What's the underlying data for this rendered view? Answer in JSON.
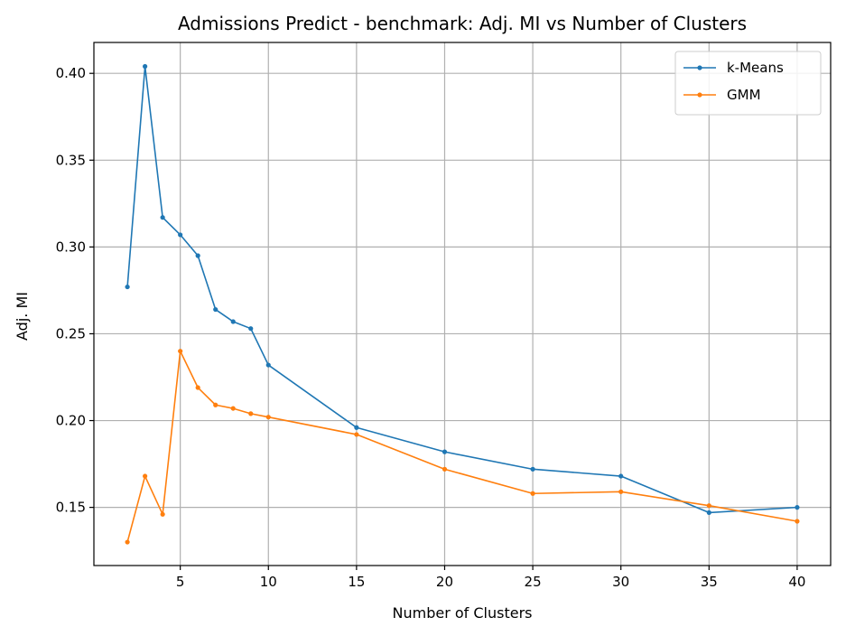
{
  "chart_data": {
    "type": "line",
    "title": "Admissions Predict - benchmark: Adj. MI vs Number of Clusters",
    "xlabel": "Number of Clusters",
    "ylabel": "Adj. MI",
    "xlim": [
      0.1,
      41.9
    ],
    "ylim": [
      0.1165,
      0.4178
    ],
    "xticks": [
      5,
      10,
      15,
      20,
      25,
      30,
      35,
      40
    ],
    "xtick_labels": [
      "5",
      "10",
      "15",
      "20",
      "25",
      "30",
      "35",
      "40"
    ],
    "yticks": [
      0.15,
      0.2,
      0.25,
      0.3,
      0.35,
      0.4
    ],
    "ytick_labels": [
      "0.15",
      "0.20",
      "0.25",
      "0.30",
      "0.35",
      "0.40"
    ],
    "grid": true,
    "legend_position": "top-right",
    "x": [
      2,
      3,
      4,
      5,
      6,
      7,
      8,
      9,
      10,
      15,
      20,
      25,
      30,
      35,
      40
    ],
    "series": [
      {
        "name": "k-Means",
        "color": "#1f77b4",
        "values": [
          0.277,
          0.404,
          0.317,
          0.307,
          0.295,
          0.264,
          0.257,
          0.253,
          0.232,
          0.196,
          0.182,
          0.172,
          0.168,
          0.147,
          0.15
        ]
      },
      {
        "name": "GMM",
        "color": "#ff7f0e",
        "values": [
          0.13,
          0.168,
          0.146,
          0.24,
          0.219,
          0.209,
          0.207,
          0.204,
          0.202,
          0.192,
          0.172,
          0.158,
          0.159,
          0.151,
          0.142
        ]
      }
    ]
  }
}
